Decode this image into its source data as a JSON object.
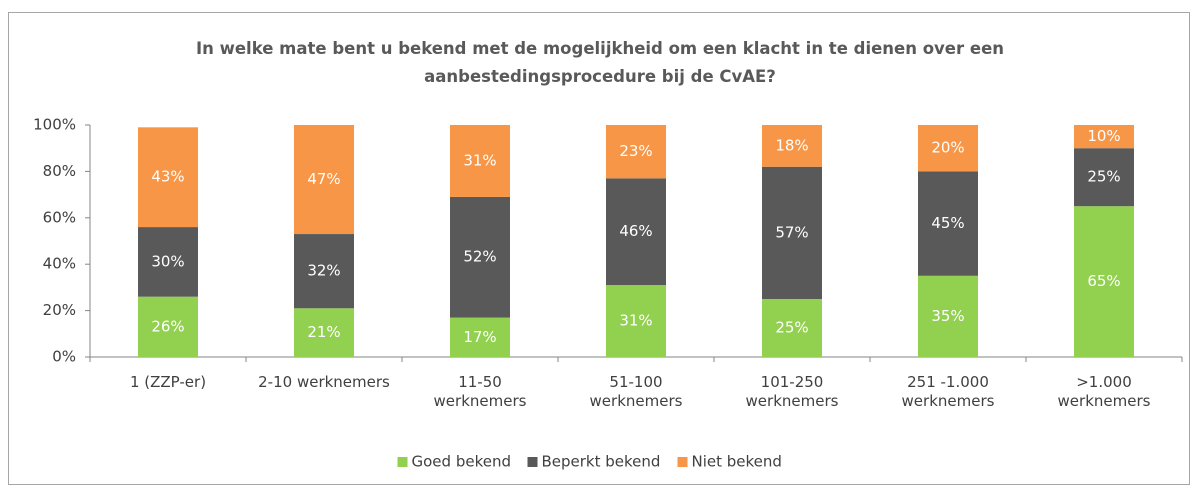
{
  "chart_data": {
    "type": "stacked_bar",
    "title": "In welke mate bent u bekend met de mogelijkheid om een klacht in te dienen over een\naanbestedingsprocedure bij de CvAE?",
    "categories": [
      "1 (ZZP-er)",
      "2-10 werknemers",
      "11-50\nwerknemers",
      "51-100\nwerknemers",
      "101-250\nwerknemers",
      "251 -1.000\nwerknemers",
      ">1.000\nwerknemers"
    ],
    "series": [
      {
        "name": "Goed bekend",
        "color": "#92d050",
        "values": [
          26,
          21,
          17,
          31,
          25,
          35,
          65
        ],
        "value_labels": [
          "26%",
          "21%",
          "17%",
          "31%",
          "25%",
          "35%",
          "65%"
        ]
      },
      {
        "name": "Beperkt bekend",
        "color": "#595959",
        "values": [
          30,
          32,
          52,
          46,
          57,
          45,
          25
        ],
        "value_labels": [
          "30%",
          "32%",
          "52%",
          "46%",
          "57%",
          "45%",
          "25%"
        ]
      },
      {
        "name": "Niet bekend",
        "color": "#f79646",
        "values": [
          43,
          47,
          31,
          23,
          18,
          20,
          10
        ],
        "value_labels": [
          "43%",
          "47%",
          "31%",
          "23%",
          "18%",
          "20%",
          "10%"
        ]
      }
    ],
    "ylim": [
      0,
      100
    ],
    "yticks": [
      {
        "value": 0,
        "label": "0%"
      },
      {
        "value": 20,
        "label": "20%"
      },
      {
        "value": 40,
        "label": "40%"
      },
      {
        "value": 60,
        "label": "60%"
      },
      {
        "value": 80,
        "label": "80%"
      },
      {
        "value": 100,
        "label": "100%"
      }
    ],
    "legend": "bottom"
  }
}
